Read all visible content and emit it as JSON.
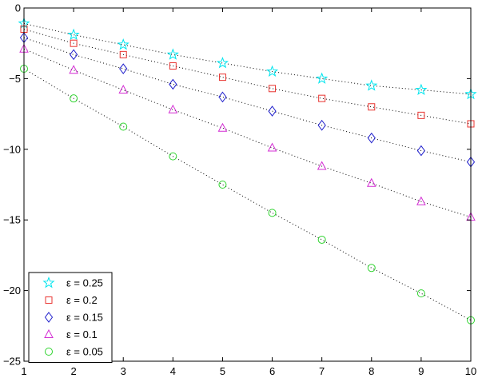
{
  "chart_data": {
    "type": "line",
    "title": "",
    "xlabel": "",
    "ylabel": "",
    "xlim": [
      1,
      10
    ],
    "ylim": [
      -25,
      0
    ],
    "xticks": [
      1,
      2,
      3,
      4,
      5,
      6,
      7,
      8,
      9,
      10
    ],
    "yticks": [
      0,
      -5,
      -10,
      -15,
      -20,
      -25
    ],
    "xtick_labels": [
      "1",
      "2",
      "3",
      "4",
      "5",
      "6",
      "7",
      "8",
      "9",
      "10"
    ],
    "ytick_labels": [
      "0",
      "−5",
      "−10",
      "−15",
      "−20",
      "−25"
    ],
    "grid": false,
    "legend_position": "bottom-left",
    "line_style": "dotted",
    "series": [
      {
        "name": "ε = 0.25",
        "marker": "star",
        "color": "#00e5ee",
        "x": [
          1,
          2,
          3,
          4,
          5,
          6,
          7,
          8,
          9,
          10
        ],
        "y": [
          -1.1,
          -1.9,
          -2.6,
          -3.3,
          -3.9,
          -4.5,
          -5.0,
          -5.5,
          -5.8,
          -6.1
        ]
      },
      {
        "name": "ε = 0.2",
        "marker": "square",
        "color": "#e8332f",
        "x": [
          1,
          2,
          3,
          4,
          5,
          6,
          7,
          8,
          9,
          10
        ],
        "y": [
          -1.5,
          -2.5,
          -3.3,
          -4.1,
          -4.9,
          -5.7,
          -6.4,
          -7.0,
          -7.6,
          -8.2
        ]
      },
      {
        "name": "ε = 0.15",
        "marker": "diamond",
        "color": "#1f1fcc",
        "x": [
          1,
          2,
          3,
          4,
          5,
          6,
          7,
          8,
          9,
          10
        ],
        "y": [
          -2.1,
          -3.3,
          -4.3,
          -5.4,
          -6.3,
          -7.3,
          -8.3,
          -9.2,
          -10.1,
          -10.9
        ]
      },
      {
        "name": "ε = 0.1",
        "marker": "triangle",
        "color": "#d42fd4",
        "x": [
          1,
          2,
          3,
          4,
          5,
          6,
          7,
          8,
          9,
          10
        ],
        "y": [
          -2.9,
          -4.4,
          -5.8,
          -7.2,
          -8.5,
          -9.9,
          -11.2,
          -12.4,
          -13.7,
          -14.8
        ]
      },
      {
        "name": "ε = 0.05",
        "marker": "circle",
        "color": "#2fd42f",
        "x": [
          1,
          2,
          3,
          4,
          5,
          6,
          7,
          8,
          9,
          10
        ],
        "y": [
          -4.3,
          -6.4,
          -8.4,
          -10.5,
          -12.5,
          -14.5,
          -16.4,
          -18.4,
          -20.2,
          -22.1
        ]
      }
    ]
  }
}
